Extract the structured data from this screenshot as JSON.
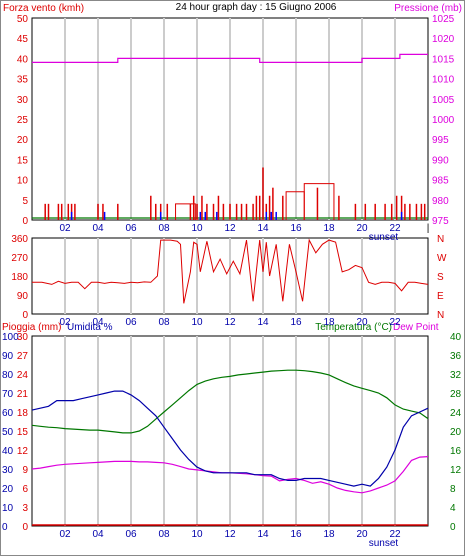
{
  "colors": {
    "wind": "#dd0000",
    "gust": "#0000ff",
    "pressure": "#dd00dd",
    "calm": "#007700",
    "direction": "#dd0000",
    "temperature": "#007700",
    "humidity": "#0000aa",
    "dewpoint": "#dd00dd",
    "rain": "#dd0000",
    "frame": "#000000",
    "grid": "#cccccc",
    "hours": "#0000aa"
  },
  "chart_data": [
    {
      "type": "line",
      "title": "24 hour graph day : 15 Giugno 2006",
      "left_axis_label": "Forza vento (kmh)",
      "right_axis_label": "Pressione (mb)",
      "left_ticks": [
        "0",
        "5",
        "10",
        "15",
        "20",
        "25",
        "30",
        "35",
        "40",
        "45",
        "50"
      ],
      "right_ticks": [
        "975",
        "980",
        "985",
        "990",
        "995",
        "1000",
        "1005",
        "1010",
        "1015",
        "1020",
        "1025"
      ],
      "ylim_left": [
        0,
        50
      ],
      "ylim_right": [
        975,
        1025
      ],
      "x_ticks": [
        "02",
        "04",
        "06",
        "08",
        "10",
        "12",
        "14",
        "16",
        "18",
        "20",
        "22"
      ],
      "x_end_label": "|",
      "xlim": [
        0,
        24
      ],
      "annotation": "sunset",
      "sunset_hour": 21.3,
      "pressure": {
        "x": [
          0,
          5.2,
          5.2,
          13.8,
          13.8,
          20.0,
          20.0,
          22.3,
          22.3,
          24.0
        ],
        "y": [
          1014,
          1014,
          1015,
          1015,
          1014,
          1014,
          1015,
          1015,
          1016,
          1016
        ]
      },
      "wind_bars": {
        "x": [
          0.8,
          1.0,
          1.6,
          1.8,
          2.2,
          2.4,
          2.6,
          4.0,
          4.3,
          5.2,
          7.2,
          7.5,
          7.8,
          8.2,
          9.6,
          9.8,
          10.0,
          10.3,
          10.6,
          11.0,
          11.3,
          11.6,
          12.0,
          12.4,
          12.7,
          13.0,
          13.4,
          13.6,
          13.8,
          14.0,
          14.2,
          14.4,
          14.6,
          15.2,
          17.3,
          18.6,
          19.6,
          20.2,
          20.8,
          21.4,
          21.8,
          22.1,
          22.4,
          22.6,
          22.9,
          23.3,
          23.6,
          23.8
        ],
        "y": [
          4,
          4,
          4,
          4,
          4,
          4,
          4,
          4,
          4,
          4,
          6,
          4,
          4,
          4,
          4,
          6,
          4,
          6,
          4,
          4,
          6,
          4,
          4,
          4,
          4,
          4,
          4,
          6,
          6,
          13,
          4,
          6,
          8,
          6,
          8,
          6,
          4,
          4,
          4,
          4,
          4,
          6,
          6,
          4,
          4,
          4,
          4,
          4
        ],
        "steps": [
          {
            "from": 8.7,
            "to": 9.9,
            "value": 4
          },
          {
            "from": 15.4,
            "to": 16.5,
            "value": 7
          },
          {
            "from": 16.5,
            "to": 18.3,
            "value": 9
          }
        ]
      },
      "gust_bars": {
        "x": [
          2.4,
          4.4,
          7.8,
          10.2,
          10.5,
          11.2,
          14.2,
          14.5,
          14.8,
          22.4
        ],
        "y": [
          2,
          2,
          2,
          2,
          2,
          2,
          2,
          2,
          2,
          2
        ]
      },
      "calm_line": 0.5
    },
    {
      "type": "line",
      "left_ticks": [
        "0",
        "90",
        "180",
        "270",
        "360"
      ],
      "right_ticks": [
        "N",
        "E",
        "S",
        "W",
        "N"
      ],
      "ylim": [
        0,
        360
      ],
      "x_ticks": [
        "02",
        "04",
        "06",
        "08",
        "10",
        "12",
        "14",
        "16",
        "18",
        "20",
        "22"
      ],
      "annotation": "sunset",
      "direction": {
        "x": [
          0,
          0.6,
          1.2,
          1.6,
          2.0,
          2.4,
          2.8,
          3.2,
          3.6,
          4.0,
          4.4,
          4.8,
          5.2,
          5.6,
          6.0,
          6.4,
          6.8,
          7.2,
          7.6,
          7.8,
          8.0,
          8.4,
          8.8,
          9.0,
          9.2,
          9.6,
          9.8,
          10.0,
          10.2,
          10.6,
          11.0,
          11.4,
          11.8,
          12.2,
          12.6,
          13.0,
          13.4,
          13.8,
          14.0,
          14.2,
          14.4,
          14.8,
          15.2,
          15.6,
          16.0,
          16.4,
          16.8,
          17.2,
          17.6,
          18.0,
          18.4,
          18.8,
          19.2,
          19.6,
          20.0,
          20.4,
          20.8,
          21.2,
          21.6,
          22.0,
          22.4,
          22.8,
          23.2,
          23.6,
          24.0
        ],
        "y": [
          150,
          150,
          140,
          155,
          145,
          150,
          150,
          120,
          150,
          150,
          145,
          150,
          148,
          145,
          150,
          148,
          152,
          150,
          180,
          350,
          350,
          350,
          345,
          330,
          50,
          200,
          340,
          330,
          200,
          345,
          200,
          260,
          190,
          250,
          190,
          350,
          60,
          350,
          200,
          340,
          180,
          330,
          60,
          330,
          200,
          60,
          350,
          290,
          330,
          350,
          340,
          200,
          210,
          230,
          220,
          150,
          140,
          150,
          150,
          145,
          110,
          150,
          150,
          145,
          140
        ]
      }
    },
    {
      "type": "line",
      "left_axis_label": "Pioggia (mm)",
      "left_axis_label_2": "Umidita %",
      "right_axis_label": "Temperatura (°C)",
      "right_axis_label_2": "Dew Point",
      "humidity_ticks": [
        "0",
        "10",
        "20",
        "30",
        "40",
        "50",
        "60",
        "70",
        "80",
        "90",
        "100"
      ],
      "rain_ticks": [
        "0",
        "3",
        "6",
        "9",
        "12",
        "15",
        "18",
        "21",
        "24",
        "27",
        "30"
      ],
      "temp_ticks": [
        "0",
        "4",
        "8",
        "12",
        "16",
        "20",
        "24",
        "28",
        "32",
        "36",
        "40"
      ],
      "ylim_humidity": [
        0,
        100
      ],
      "ylim_rain": [
        0,
        30
      ],
      "ylim_temp": [
        0,
        40
      ],
      "x_ticks": [
        "02",
        "04",
        "06",
        "08",
        "10",
        "12",
        "14",
        "16",
        "18",
        "20",
        "22"
      ],
      "annotation": "sunset",
      "humidity": {
        "x": [
          0,
          0.5,
          1.0,
          1.5,
          2.0,
          2.5,
          3.0,
          3.5,
          4.0,
          4.5,
          5.0,
          5.5,
          6.0,
          6.5,
          7.0,
          7.5,
          8.0,
          8.5,
          9.0,
          9.5,
          10.0,
          10.5,
          11.0,
          11.5,
          12.0,
          12.5,
          13.0,
          13.5,
          14.0,
          14.5,
          15.0,
          15.5,
          16.0,
          16.5,
          17.0,
          17.5,
          18.0,
          18.5,
          19.0,
          19.5,
          20.0,
          20.5,
          21.0,
          21.5,
          22.0,
          22.5,
          23.0,
          23.5,
          24.0
        ],
        "y": [
          61,
          62,
          63,
          66,
          66,
          66,
          67,
          68,
          69,
          70,
          71,
          71,
          69,
          66,
          62,
          58,
          52,
          46,
          40,
          35,
          31,
          29,
          28,
          28,
          28,
          28,
          28,
          27,
          27,
          27,
          25,
          24,
          24,
          25,
          25,
          25,
          24,
          23,
          22,
          21,
          22,
          21,
          25,
          31,
          40,
          52,
          58,
          60,
          62
        ]
      },
      "temperature": {
        "x": [
          0,
          0.5,
          1.0,
          1.5,
          2.0,
          2.5,
          3.0,
          3.5,
          4.0,
          4.5,
          5.0,
          5.5,
          6.0,
          6.5,
          7.0,
          7.5,
          8.0,
          8.5,
          9.0,
          9.5,
          10.0,
          10.5,
          11.0,
          11.5,
          12.0,
          12.5,
          13.0,
          13.5,
          14.0,
          14.5,
          15.0,
          15.5,
          16.0,
          16.5,
          17.0,
          17.5,
          18.0,
          18.5,
          19.0,
          19.5,
          20.0,
          20.5,
          21.0,
          21.5,
          22.0,
          22.5,
          23.0,
          23.5,
          24.0
        ],
        "y": [
          21.2,
          21.0,
          20.8,
          20.7,
          20.5,
          20.4,
          20.3,
          20.2,
          20.2,
          20.0,
          19.8,
          19.6,
          19.6,
          20.0,
          21.0,
          22.5,
          24.0,
          25.5,
          27.0,
          28.5,
          29.8,
          30.5,
          31.0,
          31.3,
          31.5,
          31.8,
          32.0,
          32.2,
          32.4,
          32.6,
          32.7,
          32.8,
          32.8,
          32.7,
          32.5,
          32.2,
          31.8,
          31.0,
          30.2,
          29.5,
          29.0,
          28.5,
          28.0,
          27.0,
          25.5,
          24.6,
          24.2,
          23.8,
          22.6
        ]
      },
      "dewpoint": {
        "x": [
          0,
          0.5,
          1.0,
          1.5,
          2.0,
          2.5,
          3.0,
          3.5,
          4.0,
          4.5,
          5.0,
          5.5,
          6.0,
          6.5,
          7.0,
          7.5,
          8.0,
          8.5,
          9.0,
          9.5,
          10.0,
          10.5,
          11.0,
          11.5,
          12.0,
          12.5,
          13.0,
          13.5,
          14.0,
          14.5,
          15.0,
          15.5,
          16.0,
          16.5,
          17.0,
          17.5,
          18.0,
          18.5,
          19.0,
          19.5,
          20.0,
          20.5,
          21.0,
          21.5,
          22.0,
          22.5,
          23.0,
          23.5,
          24.0
        ],
        "y": [
          12.0,
          12.2,
          12.5,
          12.8,
          13.0,
          13.1,
          13.2,
          13.3,
          13.4,
          13.5,
          13.6,
          13.6,
          13.6,
          13.5,
          13.5,
          13.4,
          13.3,
          13.0,
          12.5,
          12.0,
          11.8,
          11.6,
          11.4,
          11.2,
          11.2,
          11.1,
          11.0,
          10.8,
          10.6,
          10.5,
          9.5,
          9.8,
          10.0,
          9.6,
          9.0,
          9.3,
          8.8,
          8.0,
          7.5,
          7.2,
          7.0,
          7.4,
          8.0,
          8.6,
          9.5,
          11.5,
          13.8,
          14.5,
          14.6
        ]
      },
      "rain_total": 0
    }
  ]
}
